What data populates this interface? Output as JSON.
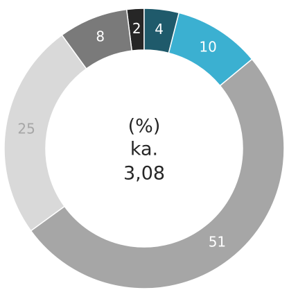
{
  "chart_data": {
    "type": "donut",
    "categories": [
      null,
      null,
      null,
      null,
      null,
      null
    ],
    "values": [
      4,
      10,
      51,
      25,
      8,
      2
    ],
    "colors": [
      "#1f5a6b",
      "#3bb0d1",
      "#a6a6a6",
      "#d9d9d9",
      "#7a7a7a",
      "#262626"
    ],
    "label_colors": [
      "#ffffff",
      "#ffffff",
      "#ffffff",
      "#a6a6a6",
      "#ffffff",
      "#ffffff"
    ],
    "center_text": [
      "(%)",
      "ka.",
      "3,08"
    ]
  }
}
